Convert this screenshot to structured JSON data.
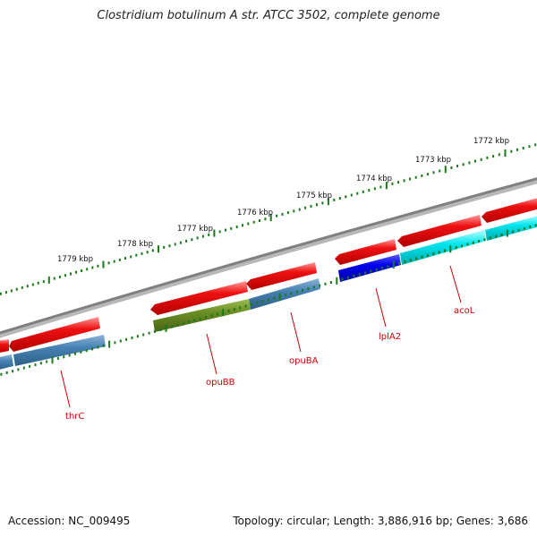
{
  "title": "Clostridium botulinum A str. ATCC 3502, complete genome",
  "footer": {
    "accession": "Accession: NC_009495",
    "summary": "Topology: circular; Length: 3,886,916 bp; Genes: 3,686"
  },
  "ruler": {
    "labels": [
      "1779 kbp",
      "1778 kbp",
      "1777 kbp",
      "1776 kbp",
      "1775 kbp",
      "1774 kbp",
      "1773 kbp",
      "1772 kbp"
    ]
  },
  "genes": [
    {
      "name": "thrC"
    },
    {
      "name": "opuBB"
    },
    {
      "name": "opuBA"
    },
    {
      "name": "lplA2"
    },
    {
      "name": "acoL"
    }
  ],
  "colors": {
    "backbone": "#808080",
    "cds": "#ee1111",
    "tick": "#1a7a1a",
    "label": "#cc0000",
    "gene_steelblue": "#4682b4",
    "gene_olive": "#6b8e23",
    "gene_blue": "#0000ee",
    "gene_cyan": "#00e5ee"
  }
}
